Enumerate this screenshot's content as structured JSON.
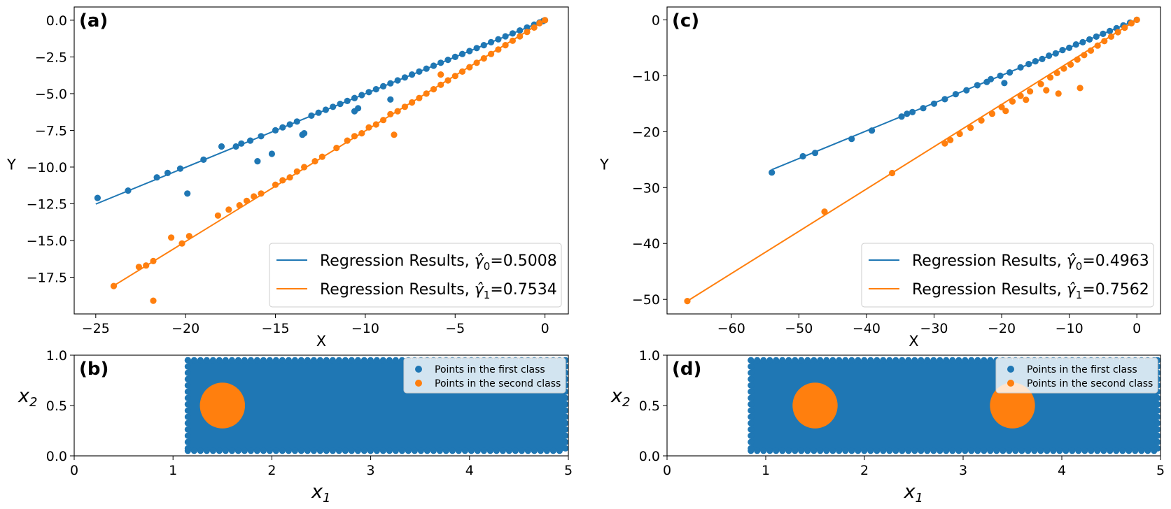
{
  "chart_data": [
    {
      "id": "a",
      "type": "scatter",
      "panel_label": "(a)",
      "xlabel": "X",
      "ylabel": "Y",
      "xlim": [
        -26.2,
        1.3
      ],
      "ylim": [
        -20.0,
        0.9
      ],
      "xticks": [
        -25,
        -20,
        -15,
        -10,
        -5,
        0
      ],
      "xtick_labels": [
        "−25",
        "−20",
        "−15",
        "−10",
        "−5",
        "0"
      ],
      "yticks": [
        0.0,
        -2.5,
        -5.0,
        -7.5,
        -10.0,
        -12.5,
        -15.0,
        -17.5
      ],
      "ytick_labels": [
        "0.0",
        "−2.5",
        "−5.0",
        "−7.5",
        "−10.0",
        "−12.5",
        "−15.0",
        "−17.5"
      ],
      "legend_position": "lower-right",
      "series": [
        {
          "name": "Regression Results, γ̂0=0.5008",
          "legend_prefix": "Regression Results, ",
          "legend_symbol": "γ̂",
          "legend_sub": "0",
          "legend_value": "=0.5008",
          "color": "#1f77b4",
          "line": [
            [
              -25,
              -12.52
            ],
            [
              0,
              0
            ]
          ],
          "points": [
            [
              -24.9,
              -12.1
            ],
            [
              -23.2,
              -11.6
            ],
            [
              -21.6,
              -10.7
            ],
            [
              -21.0,
              -10.4
            ],
            [
              -20.3,
              -10.1
            ],
            [
              -19.9,
              -11.8
            ],
            [
              -19.0,
              -9.5
            ],
            [
              -18.0,
              -8.6
            ],
            [
              -17.2,
              -8.6
            ],
            [
              -16.9,
              -8.4
            ],
            [
              -16.4,
              -8.2
            ],
            [
              -16.0,
              -9.6
            ],
            [
              -15.8,
              -7.9
            ],
            [
              -15.2,
              -9.1
            ],
            [
              -15.0,
              -7.5
            ],
            [
              -14.6,
              -7.3
            ],
            [
              -14.2,
              -7.1
            ],
            [
              -13.8,
              -6.9
            ],
            [
              -13.5,
              -7.8
            ],
            [
              -13.4,
              -7.7
            ],
            [
              -13.0,
              -6.5
            ],
            [
              -12.6,
              -6.3
            ],
            [
              -12.2,
              -6.1
            ],
            [
              -11.8,
              -5.9
            ],
            [
              -11.4,
              -5.7
            ],
            [
              -11.0,
              -5.5
            ],
            [
              -10.6,
              -5.3
            ],
            [
              -10.6,
              -6.2
            ],
            [
              -10.4,
              -6.0
            ],
            [
              -10.2,
              -5.1
            ],
            [
              -9.8,
              -4.9
            ],
            [
              -9.4,
              -4.7
            ],
            [
              -9.0,
              -4.5
            ],
            [
              -8.6,
              -5.4
            ],
            [
              -8.6,
              -4.3
            ],
            [
              -8.2,
              -4.1
            ],
            [
              -7.8,
              -3.9
            ],
            [
              -7.4,
              -3.7
            ],
            [
              -7.0,
              -3.5
            ],
            [
              -6.6,
              -3.3
            ],
            [
              -6.2,
              -3.1
            ],
            [
              -5.8,
              -2.9
            ],
            [
              -5.4,
              -2.7
            ],
            [
              -5.0,
              -2.5
            ],
            [
              -4.6,
              -2.3
            ],
            [
              -4.2,
              -2.1
            ],
            [
              -3.8,
              -1.9
            ],
            [
              -3.4,
              -1.7
            ],
            [
              -3.0,
              -1.5
            ],
            [
              -2.6,
              -1.3
            ],
            [
              -2.2,
              -1.1
            ],
            [
              -1.8,
              -0.9
            ],
            [
              -1.4,
              -0.7
            ],
            [
              -1.0,
              -0.5
            ],
            [
              -0.6,
              -0.3
            ],
            [
              -0.3,
              -0.15
            ],
            [
              -0.1,
              -0.05
            ],
            [
              0.0,
              0.0
            ]
          ]
        },
        {
          "name": "Regression Results, γ̂1=0.7534",
          "legend_prefix": "Regression Results, ",
          "legend_symbol": "γ̂",
          "legend_sub": "1",
          "legend_value": "=0.7534",
          "color": "#ff7f0e",
          "line": [
            [
              -24,
              -18.08
            ],
            [
              0,
              0
            ]
          ],
          "points": [
            [
              -24.0,
              -18.1
            ],
            [
              -22.6,
              -16.8
            ],
            [
              -22.2,
              -16.7
            ],
            [
              -21.8,
              -16.4
            ],
            [
              -21.8,
              -19.1
            ],
            [
              -20.8,
              -14.8
            ],
            [
              -20.2,
              -15.2
            ],
            [
              -19.8,
              -14.7
            ],
            [
              -18.2,
              -13.3
            ],
            [
              -17.6,
              -12.9
            ],
            [
              -17.0,
              -12.6
            ],
            [
              -16.6,
              -12.3
            ],
            [
              -16.2,
              -12.0
            ],
            [
              -15.8,
              -11.8
            ],
            [
              -15.0,
              -11.2
            ],
            [
              -14.6,
              -10.9
            ],
            [
              -14.2,
              -10.7
            ],
            [
              -13.8,
              -10.3
            ],
            [
              -13.4,
              -10.0
            ],
            [
              -12.8,
              -9.6
            ],
            [
              -12.4,
              -9.3
            ],
            [
              -11.6,
              -8.7
            ],
            [
              -11.0,
              -8.2
            ],
            [
              -10.6,
              -7.9
            ],
            [
              -10.2,
              -7.7
            ],
            [
              -9.8,
              -7.3
            ],
            [
              -9.4,
              -7.1
            ],
            [
              -9.0,
              -6.8
            ],
            [
              -8.6,
              -6.4
            ],
            [
              -8.4,
              -7.8
            ],
            [
              -8.2,
              -6.2
            ],
            [
              -7.8,
              -5.9
            ],
            [
              -7.4,
              -5.6
            ],
            [
              -7.0,
              -5.3
            ],
            [
              -6.6,
              -5.0
            ],
            [
              -6.2,
              -4.7
            ],
            [
              -5.8,
              -4.4
            ],
            [
              -5.4,
              -4.1
            ],
            [
              -5.0,
              -3.8
            ],
            [
              -4.6,
              -3.5
            ],
            [
              -5.8,
              -3.7
            ],
            [
              -4.2,
              -3.2
            ],
            [
              -3.8,
              -2.9
            ],
            [
              -3.4,
              -2.6
            ],
            [
              -3.0,
              -2.3
            ],
            [
              -2.6,
              -2.0
            ],
            [
              -2.2,
              -1.7
            ],
            [
              -1.8,
              -1.4
            ],
            [
              -1.4,
              -1.1
            ],
            [
              -1.0,
              -0.8
            ],
            [
              -0.6,
              -0.5
            ],
            [
              -0.3,
              -0.2
            ],
            [
              0.0,
              0.0
            ]
          ]
        }
      ]
    },
    {
      "id": "b",
      "type": "scatter",
      "panel_label": "(b)",
      "xlabel": "x",
      "xlabel_sub": "1",
      "ylabel": "x",
      "ylabel_sub": "2",
      "xlim": [
        0,
        5
      ],
      "ylim": [
        0,
        1
      ],
      "xticks": [
        0,
        1,
        2,
        3,
        4,
        5
      ],
      "xtick_labels": [
        "0",
        "1",
        "2",
        "3",
        "4",
        "5"
      ],
      "yticks": [
        0.0,
        0.5,
        1.0
      ],
      "ytick_labels": [
        "0.0",
        "0.5",
        "1.0"
      ],
      "legend_position": "upper-right",
      "regions": [
        {
          "name": "Points in the first class",
          "color": "#1f77b4",
          "shape": "rectangle",
          "x_range": [
            1.15,
            4.97
          ],
          "y_range": [
            0.05,
            0.95
          ]
        },
        {
          "name": "Points in the second class",
          "color": "#ff7f0e",
          "shape": "disk",
          "center": [
            1.5,
            0.5
          ],
          "radius": 0.2
        }
      ]
    },
    {
      "id": "c",
      "type": "scatter",
      "panel_label": "(c)",
      "xlabel": "X",
      "ylabel": "Y",
      "xlim": [
        -69.5,
        3.5
      ],
      "ylim": [
        -52.6,
        2.3
      ],
      "xticks": [
        -60,
        -50,
        -40,
        -30,
        -20,
        -10,
        0
      ],
      "xtick_labels": [
        "−60",
        "−50",
        "−40",
        "−30",
        "−20",
        "−10",
        "0"
      ],
      "yticks": [
        0,
        -10,
        -20,
        -30,
        -40,
        -50
      ],
      "ytick_labels": [
        "0",
        "−10",
        "−20",
        "−30",
        "−40",
        "−50"
      ],
      "legend_position": "lower-right",
      "series": [
        {
          "name": "Regression Results, γ̂0=0.4963",
          "legend_prefix": "Regression Results, ",
          "legend_symbol": "γ̂",
          "legend_sub": "0",
          "legend_value": "=0.4963",
          "color": "#1f77b4",
          "line": [
            [
              -54,
              -26.8
            ],
            [
              0,
              0
            ]
          ],
          "points": [
            [
              -54.0,
              -27.3
            ],
            [
              -49.4,
              -24.4
            ],
            [
              -47.6,
              -23.8
            ],
            [
              -42.2,
              -21.3
            ],
            [
              -39.2,
              -19.8
            ],
            [
              -34.8,
              -17.3
            ],
            [
              -34.0,
              -16.8
            ],
            [
              -33.2,
              -16.5
            ],
            [
              -31.6,
              -15.8
            ],
            [
              -30.0,
              -15.0
            ],
            [
              -28.4,
              -14.2
            ],
            [
              -26.8,
              -13.3
            ],
            [
              -25.2,
              -12.6
            ],
            [
              -23.6,
              -11.7
            ],
            [
              -22.2,
              -11.1
            ],
            [
              -21.6,
              -10.6
            ],
            [
              -20.2,
              -10.0
            ],
            [
              -19.6,
              -11.3
            ],
            [
              -18.8,
              -9.4
            ],
            [
              -17.2,
              -8.5
            ],
            [
              -16.0,
              -7.9
            ],
            [
              -15.0,
              -7.4
            ],
            [
              -14.0,
              -7.0
            ],
            [
              -13.0,
              -6.4
            ],
            [
              -12.0,
              -6.0
            ],
            [
              -11.0,
              -5.4
            ],
            [
              -10.0,
              -5.0
            ],
            [
              -9.0,
              -4.4
            ],
            [
              -8.0,
              -4.0
            ],
            [
              -7.0,
              -3.5
            ],
            [
              -6.0,
              -3.0
            ],
            [
              -5.0,
              -2.5
            ],
            [
              -4.0,
              -2.0
            ],
            [
              -3.0,
              -1.5
            ],
            [
              -2.0,
              -1.0
            ],
            [
              -1.0,
              -0.5
            ],
            [
              0.0,
              0.0
            ]
          ]
        },
        {
          "name": "Regression Results, γ̂1=0.7562",
          "legend_prefix": "Regression Results, ",
          "legend_symbol": "γ̂",
          "legend_sub": "1",
          "legend_value": "=0.7562",
          "color": "#ff7f0e",
          "line": [
            [
              -66.5,
              -50.3
            ],
            [
              0,
              0
            ]
          ],
          "points": [
            [
              -66.5,
              -50.3
            ],
            [
              -46.2,
              -34.3
            ],
            [
              -36.2,
              -27.4
            ],
            [
              -28.4,
              -22.1
            ],
            [
              -27.6,
              -21.5
            ],
            [
              -26.2,
              -20.4
            ],
            [
              -24.6,
              -19.3
            ],
            [
              -23.0,
              -18.0
            ],
            [
              -21.4,
              -16.8
            ],
            [
              -20.0,
              -15.6
            ],
            [
              -19.4,
              -16.3
            ],
            [
              -18.4,
              -14.6
            ],
            [
              -17.2,
              -13.6
            ],
            [
              -16.4,
              -14.3
            ],
            [
              -15.8,
              -12.8
            ],
            [
              -14.2,
              -11.5
            ],
            [
              -13.4,
              -12.6
            ],
            [
              -12.8,
              -10.3
            ],
            [
              -11.8,
              -9.5
            ],
            [
              -11.6,
              -13.2
            ],
            [
              -10.8,
              -8.7
            ],
            [
              -9.8,
              -8.0
            ],
            [
              -8.8,
              -7.1
            ],
            [
              -8.4,
              -12.2
            ],
            [
              -7.8,
              -6.3
            ],
            [
              -6.8,
              -5.5
            ],
            [
              -5.8,
              -4.6
            ],
            [
              -4.8,
              -3.8
            ],
            [
              -3.8,
              -3.0
            ],
            [
              -2.8,
              -2.2
            ],
            [
              -1.8,
              -1.4
            ],
            [
              -0.8,
              -0.6
            ],
            [
              0.0,
              0.0
            ]
          ]
        }
      ]
    },
    {
      "id": "d",
      "type": "scatter",
      "panel_label": "(d)",
      "xlabel": "x",
      "xlabel_sub": "1",
      "ylabel": "x",
      "ylabel_sub": "2",
      "xlim": [
        0,
        5
      ],
      "ylim": [
        0,
        1
      ],
      "xticks": [
        0,
        1,
        2,
        3,
        4,
        5
      ],
      "xtick_labels": [
        "0",
        "1",
        "2",
        "3",
        "4",
        "5"
      ],
      "yticks": [
        0.0,
        0.5,
        1.0
      ],
      "ytick_labels": [
        "0.0",
        "0.5",
        "1.0"
      ],
      "legend_position": "upper-right",
      "regions": [
        {
          "name": "Points in the first class",
          "color": "#1f77b4",
          "shape": "rectangle",
          "x_range": [
            0.85,
            4.97
          ],
          "y_range": [
            0.05,
            0.95
          ]
        },
        {
          "name": "Points in the second class",
          "color": "#ff7f0e",
          "shape": "disk",
          "center": [
            1.5,
            0.5
          ],
          "radius": 0.2
        },
        {
          "name": "Points in the second class",
          "color": "#ff7f0e",
          "shape": "disk",
          "center": [
            3.5,
            0.5
          ],
          "radius": 0.2
        }
      ]
    }
  ]
}
